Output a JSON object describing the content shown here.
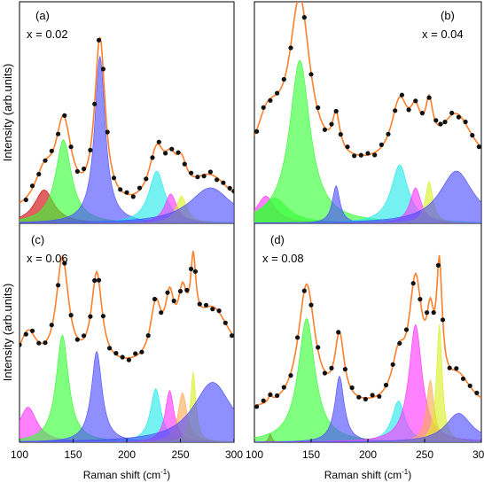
{
  "figure": {
    "ylabel": "Intensity (arb.units)",
    "xlabel_main": "Raman shift (cm",
    "xlabel_sup": "-1",
    "xlabel_end": ")"
  },
  "colors": {
    "fit_line": "#ff7f2a",
    "data_points": "#111111",
    "components": [
      "#cc0000",
      "#33ff33",
      "#4b4bff",
      "#22e8e8",
      "#ff33ff",
      "#d9f020",
      "#ffaa55"
    ]
  },
  "chart_data": [
    {
      "type": "line",
      "panel_label": "(a)",
      "composition": "x = 0.02",
      "xlim": [
        100,
        300
      ],
      "xticks": [],
      "ylim": [
        0,
        1.06
      ],
      "fit_baseline": 0.04,
      "components": [
        {
          "center": 123,
          "amp": 0.16,
          "hwhm": 11,
          "color": "#cc0000"
        },
        {
          "center": 141,
          "amp": 0.4,
          "hwhm": 9,
          "color": "#33ff33"
        },
        {
          "center": 175,
          "amp": 0.8,
          "hwhm": 6,
          "color": "#4b4bff"
        },
        {
          "center": 228,
          "amp": 0.25,
          "hwhm": 9,
          "color": "#22e8e8"
        },
        {
          "center": 241,
          "amp": 0.14,
          "hwhm": 7,
          "color": "#ff33ff"
        },
        {
          "center": 251,
          "amp": 0.13,
          "hwhm": 6,
          "color": "#d9f020"
        },
        {
          "center": 278,
          "amp": 0.17,
          "hwhm": 24,
          "color": "#4b4bff"
        }
      ],
      "points_x": [
        106,
        112,
        118,
        124,
        130,
        136,
        142,
        148,
        154,
        160,
        166,
        170,
        174,
        178,
        182,
        188,
        194,
        200,
        206,
        212,
        218,
        224,
        230,
        236,
        242,
        248,
        254,
        260,
        266,
        272,
        278,
        284,
        290,
        296,
        300
      ]
    },
    {
      "type": "line",
      "panel_label": "(b)",
      "composition": "x = 0.04",
      "xlim": [
        100,
        300
      ],
      "xticks": [],
      "ylim": [
        0,
        1.06
      ],
      "fit_baseline": 0.25,
      "components": [
        {
          "center": 110,
          "amp": 0.13,
          "hwhm": 10,
          "color": "#ff33ff"
        },
        {
          "center": 118,
          "amp": 0.12,
          "hwhm": 14,
          "color": "#33ff33"
        },
        {
          "center": 140,
          "amp": 0.78,
          "hwhm": 11,
          "color": "#33ff33"
        },
        {
          "center": 172,
          "amp": 0.18,
          "hwhm": 4,
          "color": "#4b4bff"
        },
        {
          "center": 228,
          "amp": 0.28,
          "hwhm": 9,
          "color": "#22e8e8"
        },
        {
          "center": 242,
          "amp": 0.17,
          "hwhm": 6,
          "color": "#ff33ff"
        },
        {
          "center": 254,
          "amp": 0.2,
          "hwhm": 4,
          "color": "#d9f020"
        },
        {
          "center": 278,
          "amp": 0.25,
          "hwhm": 18,
          "color": "#4b4bff"
        }
      ],
      "points_x": [
        102,
        108,
        114,
        120,
        126,
        132,
        138,
        144,
        150,
        156,
        162,
        168,
        172,
        176,
        182,
        188,
        194,
        200,
        206,
        212,
        218,
        224,
        230,
        236,
        242,
        248,
        254,
        260,
        264,
        268,
        274,
        280,
        286,
        292,
        298
      ]
    },
    {
      "type": "line",
      "panel_label": "(c)",
      "composition": "x = 0.06",
      "xlim": [
        100,
        300
      ],
      "xticks": [
        "100",
        "150",
        "200",
        "250",
        "300"
      ],
      "ylim": [
        0,
        1.06
      ],
      "fit_baseline": 0.34,
      "components": [
        {
          "center": 108,
          "amp": 0.17,
          "hwhm": 10,
          "color": "#ff33ff"
        },
        {
          "center": 140,
          "amp": 0.52,
          "hwhm": 7,
          "color": "#33ff33"
        },
        {
          "center": 172,
          "amp": 0.44,
          "hwhm": 6,
          "color": "#4b4bff"
        },
        {
          "center": 227,
          "amp": 0.26,
          "hwhm": 6,
          "color": "#22e8e8"
        },
        {
          "center": 240,
          "amp": 0.25,
          "hwhm": 5,
          "color": "#ff33ff"
        },
        {
          "center": 252,
          "amp": 0.24,
          "hwhm": 5,
          "color": "#ffaa55"
        },
        {
          "center": 262,
          "amp": 0.34,
          "hwhm": 3,
          "color": "#d9f020"
        },
        {
          "center": 280,
          "amp": 0.29,
          "hwhm": 22,
          "color": "#4b4bff"
        }
      ],
      "points_x": [
        100,
        106,
        112,
        118,
        124,
        130,
        136,
        142,
        148,
        154,
        160,
        166,
        170,
        174,
        178,
        184,
        190,
        196,
        202,
        208,
        214,
        220,
        226,
        232,
        238,
        244,
        250,
        256,
        260,
        264,
        268,
        274,
        280,
        286,
        292,
        298
      ]
    },
    {
      "type": "line",
      "panel_label": "(d)",
      "composition": "x = 0.08",
      "xlim": [
        100,
        300
      ],
      "xticks": [
        "100",
        "150",
        "200",
        "250",
        "300"
      ],
      "ylim": [
        0,
        1.06
      ],
      "fit_baseline": 0.15,
      "components": [
        {
          "center": 114,
          "amp": 0.04,
          "hwhm": 1.5,
          "color": "#cc0000"
        },
        {
          "center": 146,
          "amp": 0.6,
          "hwhm": 9,
          "color": "#33ff33"
        },
        {
          "center": 175,
          "amp": 0.32,
          "hwhm": 5,
          "color": "#4b4bff"
        },
        {
          "center": 227,
          "amp": 0.2,
          "hwhm": 7,
          "color": "#22e8e8"
        },
        {
          "center": 242,
          "amp": 0.57,
          "hwhm": 7,
          "color": "#ff33ff"
        },
        {
          "center": 255,
          "amp": 0.3,
          "hwhm": 4,
          "color": "#ffaa55"
        },
        {
          "center": 263,
          "amp": 0.57,
          "hwhm": 3,
          "color": "#d9f020"
        },
        {
          "center": 280,
          "amp": 0.14,
          "hwhm": 14,
          "color": "#4b4bff"
        }
      ],
      "points_x": [
        102,
        108,
        114,
        120,
        126,
        132,
        138,
        144,
        150,
        156,
        162,
        168,
        174,
        180,
        186,
        192,
        198,
        204,
        210,
        216,
        222,
        228,
        234,
        240,
        246,
        252,
        258,
        262,
        266,
        272,
        278,
        284,
        290,
        296
      ]
    }
  ]
}
